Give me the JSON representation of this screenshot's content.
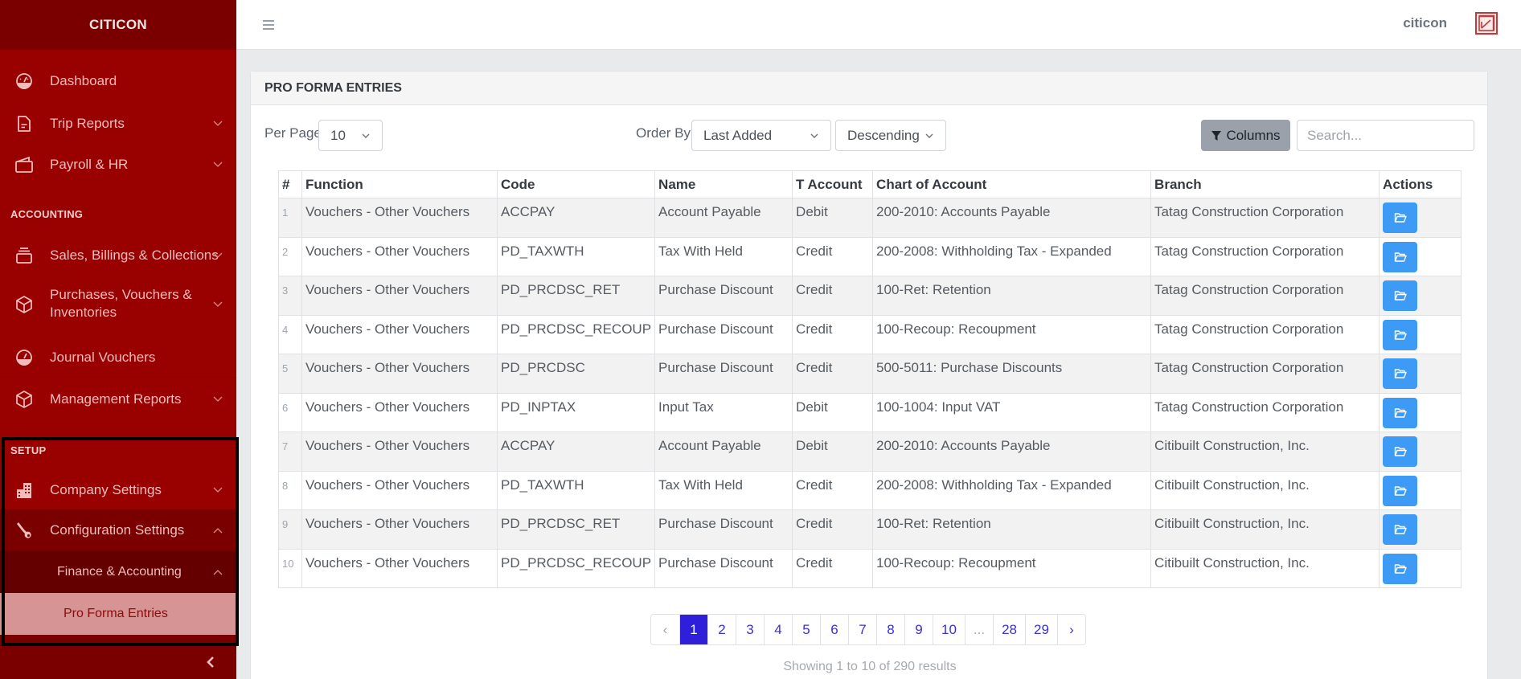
{
  "sidebar": {
    "brand": "CITICON",
    "items": [
      {
        "label": "Dashboard",
        "icon": "dashboard-gauge-icon",
        "has_chevron": false
      },
      {
        "label": "Trip Reports",
        "icon": "file-text-icon",
        "has_chevron": true
      },
      {
        "label": "Payroll & HR",
        "icon": "wallet-icon",
        "has_chevron": true
      }
    ],
    "sections": [
      {
        "title": "ACCOUNTING",
        "items": [
          {
            "label": "Sales, Billings & Collections",
            "icon": "inbox-stack-icon",
            "has_chevron": true
          },
          {
            "label_line1": "Purchases, Vouchers &",
            "label_line2": "Inventories",
            "icon": "box-icon",
            "has_chevron": true
          },
          {
            "label": "Journal Vouchers",
            "icon": "dashboard-gauge-icon",
            "has_chevron": false
          },
          {
            "label": "Management Reports",
            "icon": "box-icon",
            "has_chevron": true
          }
        ]
      },
      {
        "title": "SETUP",
        "items": [
          {
            "label": "Company Settings",
            "icon": "building-icon",
            "has_chevron": true
          },
          {
            "label": "Configuration Settings",
            "icon": "wrench-icon",
            "expanded": true
          },
          {
            "label": "Finance & Accounting",
            "expanded": true
          },
          {
            "label": "Pro Forma Entries",
            "active": true
          }
        ]
      }
    ],
    "collapse_icon": "chevron-left-icon"
  },
  "topbar": {
    "menu_icon": "hamburger-icon",
    "user_name": "citicon",
    "logo_icon": "citicon-logo-icon"
  },
  "card": {
    "title": "PRO FORMA ENTRIES",
    "per_page_label": "Per Page",
    "per_page_value": "10",
    "order_by_label": "Order By",
    "order_by_value": "Last Added",
    "direction_value": "Descending",
    "columns_button": "Columns",
    "search_placeholder": "Search..."
  },
  "table": {
    "columns": [
      "#",
      "Function",
      "Code",
      "Name",
      "T Account",
      "Chart of Account",
      "Branch",
      "Actions"
    ],
    "rows": [
      {
        "n": "1",
        "function": "Vouchers - Other Vouchers",
        "code": "ACCPAY",
        "name": "Account Payable",
        "t_account": "Debit",
        "chart": "200-2010: Accounts Payable",
        "branch": "Tatag Construction Corporation"
      },
      {
        "n": "2",
        "function": "Vouchers - Other Vouchers",
        "code": "PD_TAXWTH",
        "name": "Tax With Held",
        "t_account": "Credit",
        "chart": "200-2008: Withholding Tax - Expanded",
        "branch": "Tatag Construction Corporation"
      },
      {
        "n": "3",
        "function": "Vouchers - Other Vouchers",
        "code": "PD_PRCDSC_RET",
        "name": "Purchase Discount",
        "t_account": "Credit",
        "chart": "100-Ret: Retention",
        "branch": "Tatag Construction Corporation"
      },
      {
        "n": "4",
        "function": "Vouchers - Other Vouchers",
        "code": "PD_PRCDSC_RECOUP",
        "name": "Purchase Discount",
        "t_account": "Credit",
        "chart": "100-Recoup: Recoupment",
        "branch": "Tatag Construction Corporation"
      },
      {
        "n": "5",
        "function": "Vouchers - Other Vouchers",
        "code": "PD_PRCDSC",
        "name": "Purchase Discount",
        "t_account": "Credit",
        "chart": "500-5011: Purchase Discounts",
        "branch": "Tatag Construction Corporation"
      },
      {
        "n": "6",
        "function": "Vouchers - Other Vouchers",
        "code": "PD_INPTAX",
        "name": "Input Tax",
        "t_account": "Debit",
        "chart": "100-1004: Input VAT",
        "branch": "Tatag Construction Corporation"
      },
      {
        "n": "7",
        "function": "Vouchers - Other Vouchers",
        "code": "ACCPAY",
        "name": "Account Payable",
        "t_account": "Debit",
        "chart": "200-2010: Accounts Payable",
        "branch": "Citibuilt Construction, Inc."
      },
      {
        "n": "8",
        "function": "Vouchers - Other Vouchers",
        "code": "PD_TAXWTH",
        "name": "Tax With Held",
        "t_account": "Credit",
        "chart": "200-2008: Withholding Tax - Expanded",
        "branch": "Citibuilt Construction, Inc."
      },
      {
        "n": "9",
        "function": "Vouchers - Other Vouchers",
        "code": "PD_PRCDSC_RET",
        "name": "Purchase Discount",
        "t_account": "Credit",
        "chart": "100-Ret: Retention",
        "branch": "Citibuilt Construction, Inc."
      },
      {
        "n": "10",
        "function": "Vouchers - Other Vouchers",
        "code": "PD_PRCDSC_RECOUP",
        "name": "Purchase Discount",
        "t_account": "Credit",
        "chart": "100-Recoup: Recoupment",
        "branch": "Citibuilt Construction, Inc."
      }
    ],
    "action_icon": "folder-open-icon"
  },
  "pagination": {
    "prev": "‹",
    "pages": [
      "1",
      "2",
      "3",
      "4",
      "5",
      "6",
      "7",
      "8",
      "9",
      "10",
      "...",
      "28",
      "29"
    ],
    "next": "›",
    "current": "1",
    "summary": "Showing 1 to 10 of 290 results"
  },
  "colors": {
    "sidebar_bg": "#990000",
    "sidebar_brand_bg": "#7a0000",
    "active_item_bg": "#d69494",
    "action_button": "#3d9bf5",
    "pagination_active": "#2f1fd9"
  }
}
